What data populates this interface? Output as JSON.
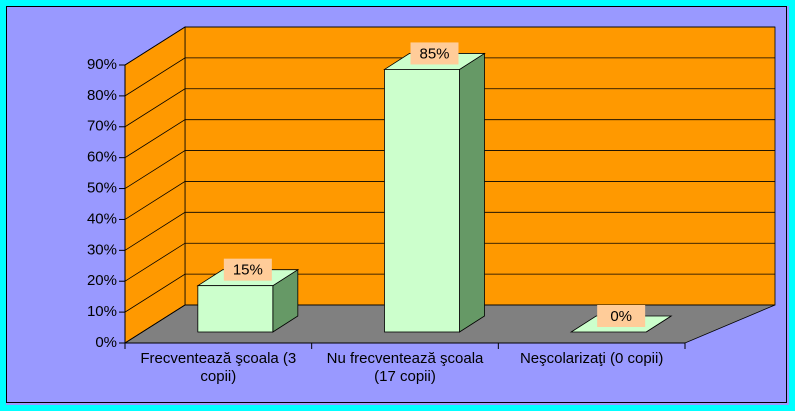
{
  "chart_data": {
    "type": "bar",
    "categories": [
      "Frecventează şcoala (3 copii)",
      "Nu frecventează şcoala (17 copii)",
      "Neşcolarizaţi (0 copii)"
    ],
    "values": [
      15,
      85,
      0
    ],
    "value_labels": [
      "15%",
      "85%",
      "0%"
    ],
    "color": "#ccffcc",
    "ylim": [
      0,
      90
    ],
    "yticks": [
      {
        "value": 0,
        "label": "0%"
      },
      {
        "value": 10,
        "label": "10%"
      },
      {
        "value": 20,
        "label": "20%"
      },
      {
        "value": 30,
        "label": "30%"
      },
      {
        "value": 40,
        "label": "40%"
      },
      {
        "value": 50,
        "label": "50%"
      },
      {
        "value": 60,
        "label": "60%"
      },
      {
        "value": 70,
        "label": "70%"
      },
      {
        "value": 80,
        "label": "80%"
      },
      {
        "value": 90,
        "label": "90%"
      }
    ],
    "grid": true
  }
}
